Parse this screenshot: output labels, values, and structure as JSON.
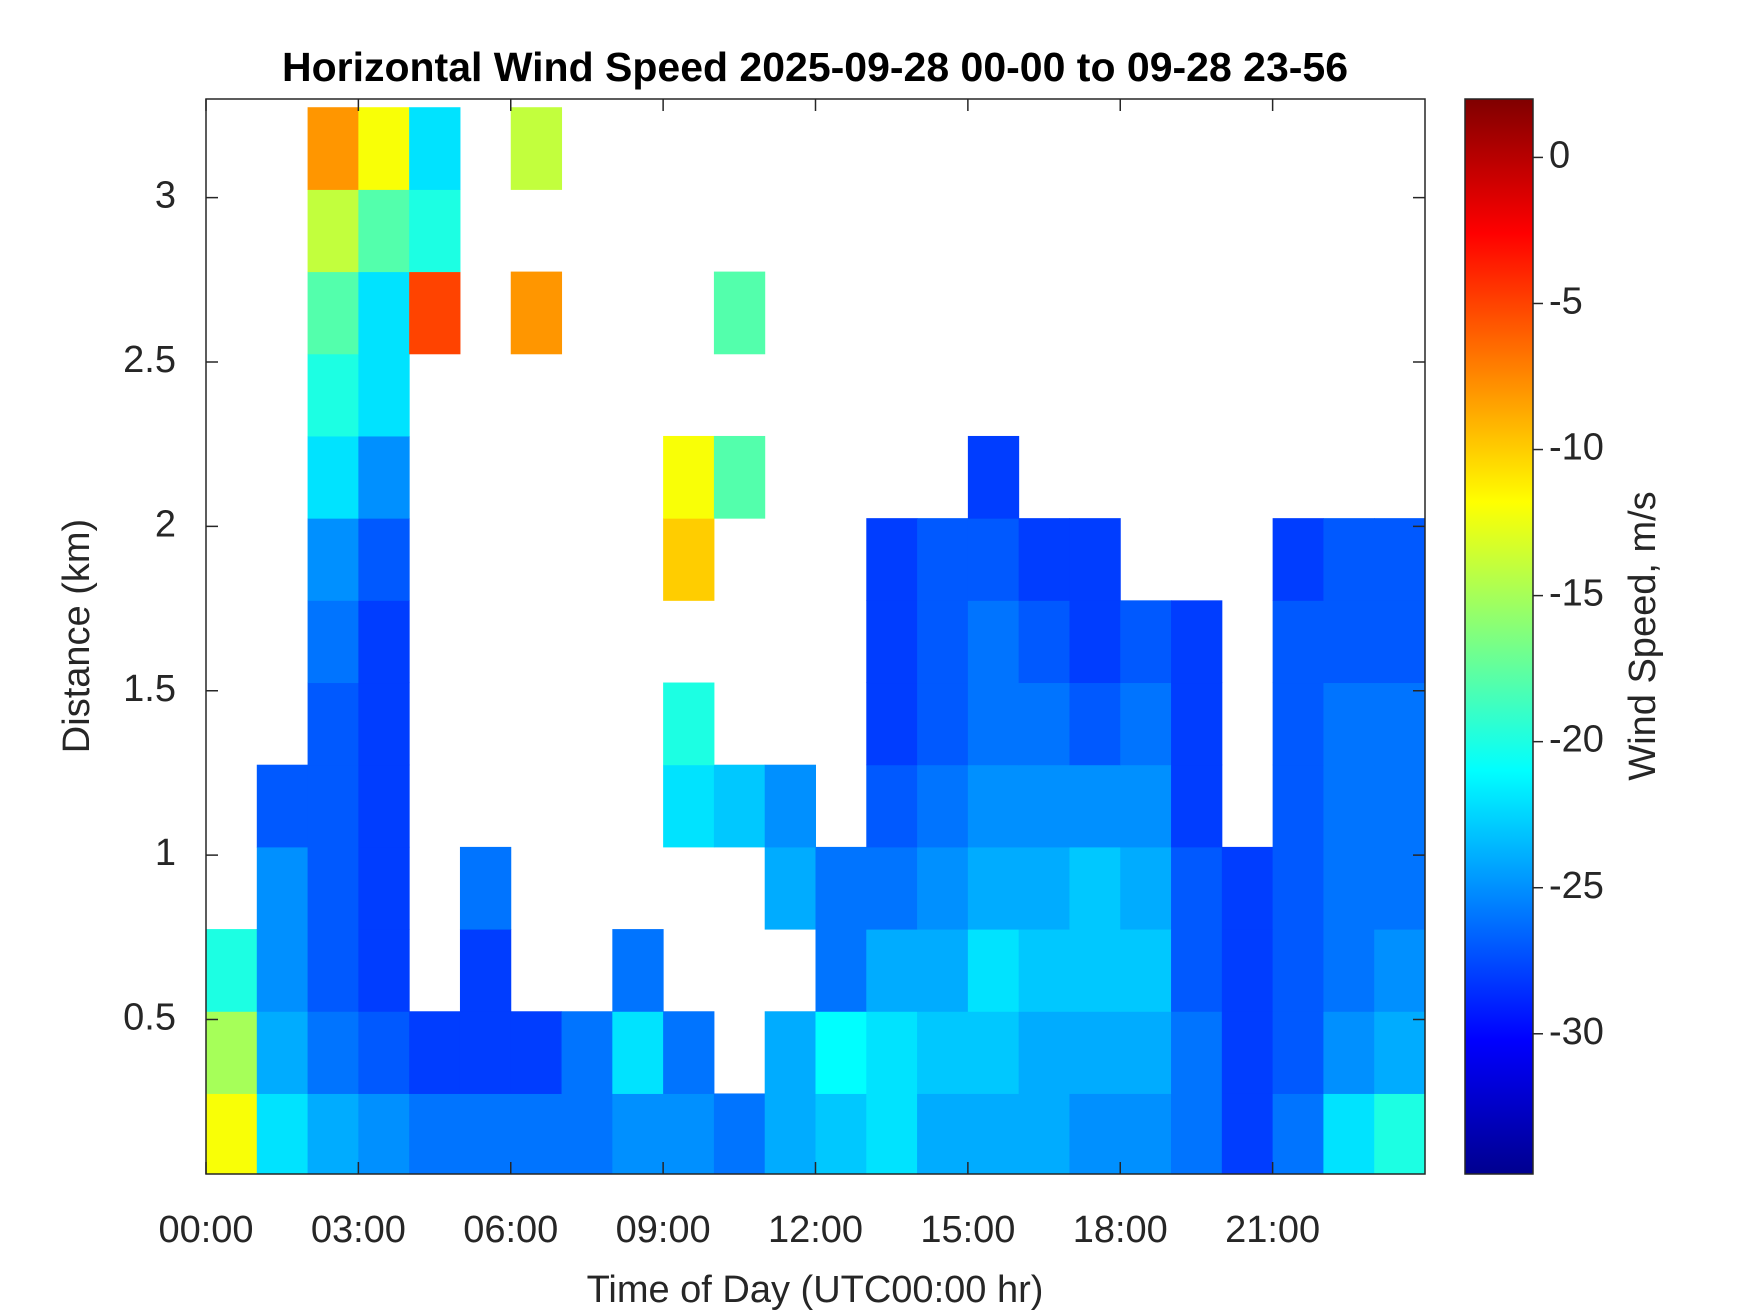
{
  "chart_data": {
    "type": "heatmap",
    "title": "Horizontal Wind Speed 2025-09-28 00-00 to 09-28 23-56",
    "x_label": "Time of Day (UTC00:00 hr)",
    "y_label": "Distance (km)",
    "colorbar_label": "Wind Speed, m/s",
    "colormap": "jet",
    "x": [
      0.5,
      1.5,
      2.5,
      3.5,
      4.5,
      5.5,
      6.5,
      7.5,
      8.5,
      9.5,
      10.5,
      11.5,
      12.5,
      13.5,
      14.5,
      15.5,
      16.5,
      17.5,
      18.5,
      19.5,
      20.5,
      21.5,
      22.5,
      23.5
    ],
    "y": [
      0.15,
      0.4,
      0.65,
      0.9,
      1.15,
      1.4,
      1.65,
      1.9,
      2.15,
      2.4,
      2.65,
      2.9,
      3.15
    ],
    "z": [
      [
        -12,
        -22,
        -24,
        -25,
        -26,
        -26,
        -26,
        -26,
        -25,
        -25,
        -26,
        -24,
        -23,
        -22,
        -24,
        -24,
        -24,
        -25,
        -25,
        -26,
        -28,
        -26,
        -22,
        -20
      ],
      [
        -15,
        -24,
        -26,
        -27,
        -28,
        -28,
        -28,
        -26,
        -22,
        -26,
        null,
        -24,
        -21,
        -22,
        -23,
        -23,
        -24,
        -24,
        -24,
        -26,
        -28,
        -27,
        -25,
        -24
      ],
      [
        -20,
        -25,
        -27,
        -28,
        null,
        -28,
        null,
        null,
        -26,
        null,
        null,
        null,
        -26,
        -24,
        -24,
        -22,
        -23,
        -23,
        -23,
        -27,
        -28,
        -27,
        -26,
        -25
      ],
      [
        null,
        -25,
        -27,
        -28,
        null,
        -26,
        null,
        null,
        null,
        null,
        null,
        -24,
        -26,
        -26,
        -25,
        -24,
        -24,
        -23,
        -24,
        -27,
        -28,
        -27,
        -26,
        -26
      ],
      [
        null,
        -27,
        -27,
        -28,
        null,
        null,
        null,
        null,
        null,
        -22,
        -23,
        -25,
        null,
        -27,
        -26,
        -25,
        -25,
        -25,
        -25,
        -28,
        null,
        -27,
        -26,
        -26
      ],
      [
        null,
        null,
        -27,
        -28,
        null,
        null,
        null,
        null,
        null,
        -20,
        null,
        null,
        null,
        -28,
        -27,
        -26,
        -26,
        -27,
        -26,
        -28,
        null,
        -27,
        -26,
        -26
      ],
      [
        null,
        null,
        -26,
        -28,
        null,
        null,
        null,
        null,
        null,
        null,
        null,
        null,
        null,
        -28,
        -27,
        -26,
        -27,
        -28,
        -27,
        -28,
        null,
        -27,
        -27,
        -27
      ],
      [
        null,
        null,
        -25,
        -27,
        null,
        null,
        null,
        null,
        null,
        -10,
        null,
        null,
        null,
        -28,
        -27,
        -27,
        -28,
        -28,
        null,
        null,
        null,
        -28,
        -27,
        -27
      ],
      [
        null,
        null,
        -22,
        -25,
        null,
        null,
        null,
        null,
        null,
        -12,
        -18,
        null,
        null,
        null,
        null,
        -28,
        null,
        null,
        null,
        null,
        null,
        null,
        null,
        null
      ],
      [
        null,
        null,
        -20,
        -22,
        null,
        null,
        null,
        null,
        null,
        null,
        null,
        null,
        null,
        null,
        null,
        null,
        null,
        null,
        null,
        null,
        null,
        null,
        null,
        null
      ],
      [
        null,
        null,
        -18,
        -22,
        -5,
        null,
        -8,
        null,
        null,
        null,
        -18,
        null,
        null,
        null,
        null,
        null,
        null,
        null,
        null,
        null,
        null,
        null,
        null,
        null
      ],
      [
        null,
        null,
        -14,
        -18,
        -20,
        null,
        null,
        null,
        null,
        null,
        null,
        null,
        null,
        null,
        null,
        null,
        null,
        null,
        null,
        null,
        null,
        null,
        null,
        null
      ],
      [
        null,
        null,
        -8,
        -12,
        -22,
        null,
        -14,
        null,
        null,
        null,
        null,
        null,
        null,
        null,
        null,
        null,
        null,
        null,
        null,
        null,
        null,
        null,
        null,
        null
      ]
    ],
    "xlim": [
      0,
      24
    ],
    "xticks": [
      {
        "value": 0,
        "label": "00:00"
      },
      {
        "value": 3,
        "label": "03:00"
      },
      {
        "value": 6,
        "label": "06:00"
      },
      {
        "value": 9,
        "label": "09:00"
      },
      {
        "value": 12,
        "label": "12:00"
      },
      {
        "value": 15,
        "label": "15:00"
      },
      {
        "value": 18,
        "label": "18:00"
      },
      {
        "value": 21,
        "label": "21:00"
      }
    ],
    "ylim": [
      0.03,
      3.3
    ],
    "yticks": [
      0.5,
      1,
      1.5,
      2,
      2.5,
      3
    ],
    "clim": [
      -34.8,
      2
    ],
    "cticks": [
      0,
      -5,
      -10,
      -15,
      -20,
      -25,
      -30
    ]
  }
}
